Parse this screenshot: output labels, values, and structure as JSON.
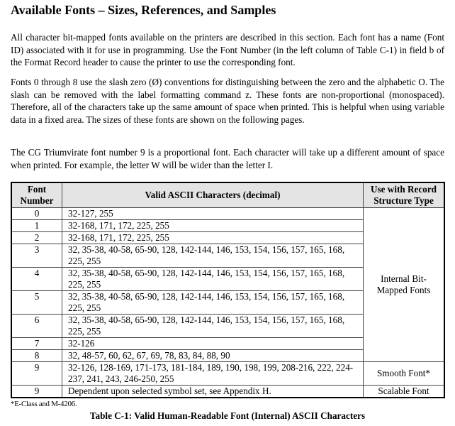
{
  "title": "Available Fonts – Sizes, References, and Samples",
  "paragraphs": [
    "All character bit-mapped fonts available on the printers are described in this section. Each font has a name (Font ID) associated with it for use in programming. Use the Font Number (in the left column of Table C-1) in field b of the Format Record header to cause the printer to use the corresponding font.",
    "Fonts 0 through 8 use the slash zero (Ø) conventions for distinguishing between the zero and the alphabetic O. The slash can be removed with the label formatting command z. These fonts are non-proportional (monospaced). Therefore, all of the characters take up the same amount of space when printed. This is helpful when using variable data in a fixed area. The sizes of these fonts are shown on the following pages.",
    "The CG Triumvirate font number 9 is a proportional font. Each character will take up a different amount of space when printed. For example, the letter W will be wider than the letter I."
  ],
  "table": {
    "headers": [
      "Font Number",
      "Valid ASCII Characters (decimal)",
      "Use with Record Structure Type"
    ],
    "rows": [
      {
        "font": "0",
        "chars": "32-127, 255"
      },
      {
        "font": "1",
        "chars": "32-168, 171, 172, 225, 255"
      },
      {
        "font": "2",
        "chars": "32-168, 171, 172, 225, 255"
      },
      {
        "font": "3",
        "chars": "32, 35-38, 40-58, 65-90, 128, 142-144, 146, 153, 154, 156, 157, 165, 168, 225, 255"
      },
      {
        "font": "4",
        "chars": "32, 35-38, 40-58, 65-90, 128, 142-144, 146, 153, 154, 156, 157, 165, 168, 225, 255"
      },
      {
        "font": "5",
        "chars": "32, 35-38, 40-58, 65-90, 128, 142-144, 146, 153, 154, 156, 157, 165, 168, 225, 255"
      },
      {
        "font": "6",
        "chars": "32, 35-38, 40-58, 65-90, 128, 142-144, 146, 153, 154, 156, 157, 165, 168, 225, 255"
      },
      {
        "font": "7",
        "chars": "32-126"
      },
      {
        "font": "8",
        "chars": "32, 48-57, 60, 62, 67, 69, 78, 83, 84, 88, 90"
      },
      {
        "font": "9",
        "chars": "32-126, 128-169, 171-173, 181-184, 189, 190, 198, 199, 208-216, 222, 224-237, 241, 243, 246-250, 255"
      },
      {
        "font": "9",
        "chars": "Dependent upon selected symbol set, see Appendix H."
      }
    ],
    "types": {
      "bitmapped": "Internal Bit-Mapped Fonts",
      "smooth": "Smooth Font*",
      "scalable": "Scalable Font"
    }
  },
  "footnote": "*E-Class and M-4206.",
  "caption": "Table C-1: Valid Human-Readable Font (Internal) ASCII Characters"
}
